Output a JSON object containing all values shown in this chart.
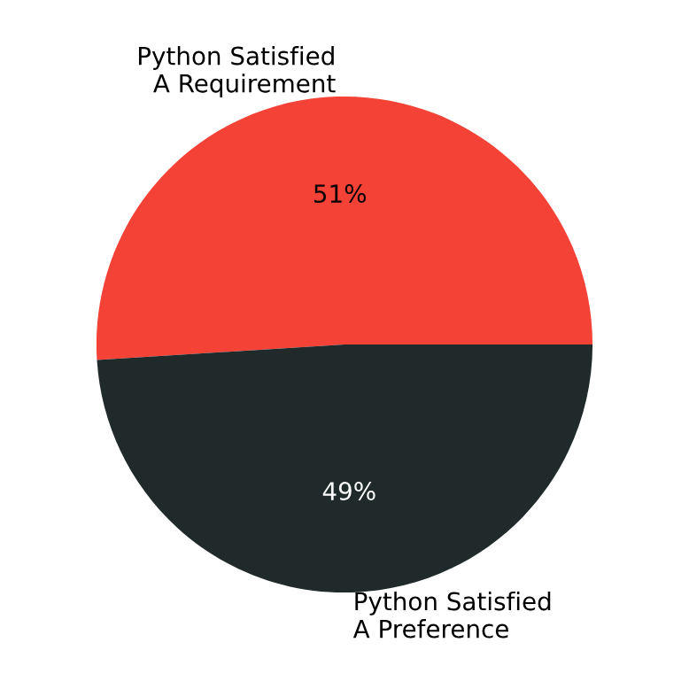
{
  "chart_data": {
    "type": "pie",
    "categories": [
      "Python Satisfied\nA Requirement",
      "Python Satisfied\nA Preference"
    ],
    "values": [
      51,
      49
    ],
    "colors": [
      "#f44336",
      "#212a2b"
    ],
    "value_labels": [
      "51%",
      "49%"
    ]
  }
}
